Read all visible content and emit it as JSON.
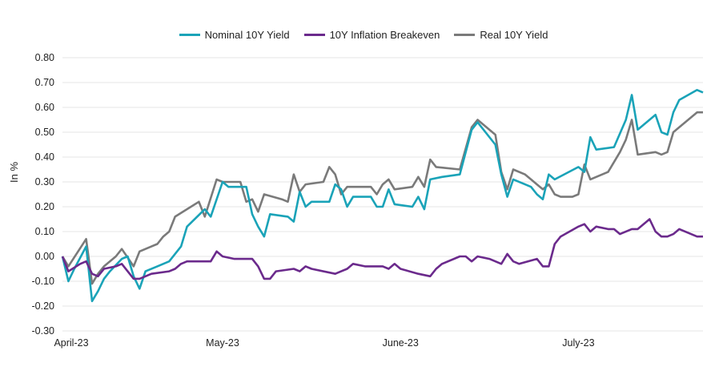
{
  "chart_data": {
    "type": "line",
    "ylabel": "In %",
    "ylim": [
      -0.3,
      0.8
    ],
    "yticks": [
      "0.80",
      "0.70",
      "0.60",
      "0.50",
      "0.40",
      "0.30",
      "0.20",
      "0.10",
      "0.00",
      "-0.10",
      "-0.20",
      "-0.30"
    ],
    "ytick_values": [
      0.8,
      0.7,
      0.6,
      0.5,
      0.4,
      0.3,
      0.2,
      0.1,
      0.0,
      -0.1,
      -0.2,
      -0.3
    ],
    "xtick_labels": [
      "April-23",
      "May-23",
      "June-23",
      "July-23"
    ],
    "xtick_index": [
      0,
      27,
      57,
      87
    ],
    "n_points": 108,
    "grid": true,
    "legend_position": "top-center",
    "colors": {
      "nominal": "#1aa3b8",
      "breakeven": "#6b2a8c",
      "real": "#7a7a7a"
    },
    "series": [
      {
        "name": "Nominal 10Y Yield",
        "color": "#1aa3b8",
        "anchors": [
          [
            0,
            0.0
          ],
          [
            1,
            -0.1
          ],
          [
            2,
            -0.05
          ],
          [
            4,
            0.04
          ],
          [
            5,
            -0.18
          ],
          [
            6,
            -0.14
          ],
          [
            7,
            -0.09
          ],
          [
            8,
            -0.06
          ],
          [
            10,
            -0.01
          ],
          [
            11,
            0.0
          ],
          [
            12,
            -0.08
          ],
          [
            13,
            -0.13
          ],
          [
            14,
            -0.06
          ],
          [
            16,
            -0.04
          ],
          [
            18,
            -0.02
          ],
          [
            20,
            0.04
          ],
          [
            21,
            0.12
          ],
          [
            24,
            0.19
          ],
          [
            25,
            0.16
          ],
          [
            27,
            0.3
          ],
          [
            28,
            0.28
          ],
          [
            31,
            0.28
          ],
          [
            32,
            0.17
          ],
          [
            33,
            0.12
          ],
          [
            34,
            0.08
          ],
          [
            35,
            0.17
          ],
          [
            38,
            0.16
          ],
          [
            39,
            0.14
          ],
          [
            40,
            0.26
          ],
          [
            41,
            0.2
          ],
          [
            42,
            0.22
          ],
          [
            45,
            0.22
          ],
          [
            46,
            0.29
          ],
          [
            47,
            0.27
          ],
          [
            48,
            0.2
          ],
          [
            49,
            0.24
          ],
          [
            52,
            0.24
          ],
          [
            53,
            0.2
          ],
          [
            54,
            0.2
          ],
          [
            55,
            0.27
          ],
          [
            56,
            0.21
          ],
          [
            59,
            0.2
          ],
          [
            60,
            0.24
          ],
          [
            61,
            0.19
          ],
          [
            62,
            0.31
          ],
          [
            64,
            0.32
          ],
          [
            67,
            0.33
          ],
          [
            69,
            0.51
          ],
          [
            70,
            0.54
          ],
          [
            73,
            0.45
          ],
          [
            74,
            0.33
          ],
          [
            75,
            0.24
          ],
          [
            76,
            0.31
          ],
          [
            78,
            0.29
          ],
          [
            79,
            0.28
          ],
          [
            80,
            0.25
          ],
          [
            81,
            0.23
          ],
          [
            82,
            0.33
          ],
          [
            83,
            0.31
          ],
          [
            87,
            0.36
          ],
          [
            88,
            0.34
          ],
          [
            89,
            0.48
          ],
          [
            90,
            0.43
          ],
          [
            93,
            0.44
          ],
          [
            95,
            0.55
          ],
          [
            96,
            0.65
          ],
          [
            97,
            0.51
          ],
          [
            100,
            0.57
          ],
          [
            101,
            0.5
          ],
          [
            102,
            0.49
          ],
          [
            103,
            0.58
          ],
          [
            104,
            0.63
          ],
          [
            107,
            0.67
          ],
          [
            108,
            0.66
          ]
        ]
      },
      {
        "name": "10Y Inflation Breakeven",
        "color": "#6b2a8c",
        "anchors": [
          [
            0,
            0.0
          ],
          [
            1,
            -0.06
          ],
          [
            3,
            -0.03
          ],
          [
            4,
            -0.02
          ],
          [
            5,
            -0.07
          ],
          [
            6,
            -0.08
          ],
          [
            7,
            -0.05
          ],
          [
            9,
            -0.04
          ],
          [
            10,
            -0.03
          ],
          [
            12,
            -0.09
          ],
          [
            13,
            -0.09
          ],
          [
            15,
            -0.07
          ],
          [
            18,
            -0.06
          ],
          [
            19,
            -0.05
          ],
          [
            20,
            -0.03
          ],
          [
            21,
            -0.02
          ],
          [
            25,
            -0.02
          ],
          [
            26,
            0.02
          ],
          [
            27,
            0.0
          ],
          [
            29,
            -0.01
          ],
          [
            32,
            -0.01
          ],
          [
            33,
            -0.04
          ],
          [
            34,
            -0.09
          ],
          [
            35,
            -0.09
          ],
          [
            36,
            -0.06
          ],
          [
            39,
            -0.05
          ],
          [
            40,
            -0.06
          ],
          [
            41,
            -0.04
          ],
          [
            42,
            -0.05
          ],
          [
            46,
            -0.07
          ],
          [
            47,
            -0.06
          ],
          [
            48,
            -0.05
          ],
          [
            49,
            -0.03
          ],
          [
            51,
            -0.04
          ],
          [
            54,
            -0.04
          ],
          [
            55,
            -0.05
          ],
          [
            56,
            -0.03
          ],
          [
            57,
            -0.05
          ],
          [
            60,
            -0.07
          ],
          [
            62,
            -0.08
          ],
          [
            63,
            -0.05
          ],
          [
            64,
            -0.03
          ],
          [
            67,
            0.0
          ],
          [
            68,
            0.0
          ],
          [
            69,
            -0.02
          ],
          [
            70,
            0.0
          ],
          [
            72,
            -0.01
          ],
          [
            73,
            -0.02
          ],
          [
            74,
            -0.03
          ],
          [
            75,
            0.01
          ],
          [
            76,
            -0.02
          ],
          [
            77,
            -0.03
          ],
          [
            80,
            -0.01
          ],
          [
            81,
            -0.04
          ],
          [
            82,
            -0.04
          ],
          [
            83,
            0.05
          ],
          [
            84,
            0.08
          ],
          [
            87,
            0.12
          ],
          [
            88,
            0.13
          ],
          [
            89,
            0.1
          ],
          [
            90,
            0.12
          ],
          [
            92,
            0.11
          ],
          [
            93,
            0.11
          ],
          [
            94,
            0.09
          ],
          [
            96,
            0.11
          ],
          [
            97,
            0.11
          ],
          [
            99,
            0.15
          ],
          [
            100,
            0.1
          ],
          [
            101,
            0.08
          ],
          [
            102,
            0.08
          ],
          [
            103,
            0.09
          ],
          [
            104,
            0.11
          ],
          [
            107,
            0.08
          ],
          [
            108,
            0.08
          ]
        ]
      },
      {
        "name": "Real 10Y Yield",
        "color": "#7a7a7a",
        "anchors": [
          [
            0,
            0.0
          ],
          [
            1,
            -0.04
          ],
          [
            4,
            0.07
          ],
          [
            5,
            -0.11
          ],
          [
            6,
            -0.07
          ],
          [
            7,
            -0.04
          ],
          [
            9,
            0.0
          ],
          [
            10,
            0.03
          ],
          [
            12,
            -0.04
          ],
          [
            13,
            0.02
          ],
          [
            15,
            0.04
          ],
          [
            16,
            0.05
          ],
          [
            17,
            0.08
          ],
          [
            18,
            0.1
          ],
          [
            19,
            0.16
          ],
          [
            23,
            0.22
          ],
          [
            24,
            0.16
          ],
          [
            26,
            0.31
          ],
          [
            27,
            0.3
          ],
          [
            30,
            0.3
          ],
          [
            31,
            0.22
          ],
          [
            32,
            0.23
          ],
          [
            33,
            0.18
          ],
          [
            34,
            0.25
          ],
          [
            37,
            0.23
          ],
          [
            38,
            0.22
          ],
          [
            39,
            0.33
          ],
          [
            40,
            0.26
          ],
          [
            41,
            0.29
          ],
          [
            44,
            0.3
          ],
          [
            45,
            0.36
          ],
          [
            46,
            0.33
          ],
          [
            47,
            0.25
          ],
          [
            48,
            0.28
          ],
          [
            52,
            0.28
          ],
          [
            53,
            0.25
          ],
          [
            54,
            0.29
          ],
          [
            55,
            0.31
          ],
          [
            56,
            0.27
          ],
          [
            59,
            0.28
          ],
          [
            60,
            0.32
          ],
          [
            61,
            0.28
          ],
          [
            62,
            0.39
          ],
          [
            63,
            0.36
          ],
          [
            67,
            0.35
          ],
          [
            69,
            0.52
          ],
          [
            70,
            0.55
          ],
          [
            73,
            0.49
          ],
          [
            74,
            0.34
          ],
          [
            75,
            0.27
          ],
          [
            76,
            0.35
          ],
          [
            78,
            0.33
          ],
          [
            79,
            0.31
          ],
          [
            80,
            0.29
          ],
          [
            81,
            0.27
          ],
          [
            82,
            0.29
          ],
          [
            83,
            0.25
          ],
          [
            84,
            0.24
          ],
          [
            86,
            0.24
          ],
          [
            87,
            0.25
          ],
          [
            88,
            0.37
          ],
          [
            89,
            0.31
          ],
          [
            92,
            0.34
          ],
          [
            94,
            0.42
          ],
          [
            95,
            0.47
          ],
          [
            96,
            0.55
          ],
          [
            97,
            0.41
          ],
          [
            100,
            0.42
          ],
          [
            101,
            0.41
          ],
          [
            102,
            0.42
          ],
          [
            103,
            0.5
          ],
          [
            104,
            0.52
          ],
          [
            107,
            0.58
          ],
          [
            108,
            0.58
          ]
        ]
      }
    ]
  }
}
